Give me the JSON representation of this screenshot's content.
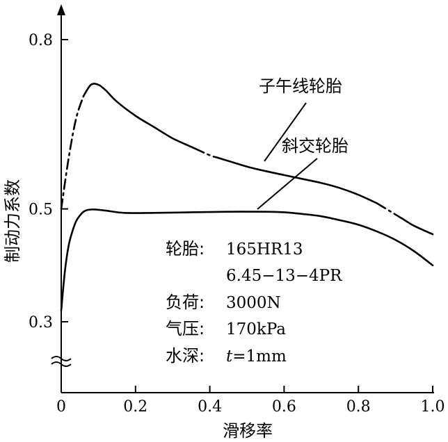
{
  "chart_data": {
    "type": "line",
    "title": "",
    "xlabel": "滑移率",
    "ylabel": "制动力系数",
    "xlim": [
      0,
      1.0
    ],
    "ylim": [
      0.3,
      0.8
    ],
    "x_ticks": [
      "0",
      "0.2",
      "0.4",
      "0.6",
      "0.8",
      "1.0"
    ],
    "y_ticks": [
      "0.3",
      "0.5",
      "0.8"
    ],
    "axis_break": true,
    "series": [
      {
        "name": "子午线轮胎",
        "x": [
          0.0,
          0.02,
          0.04,
          0.06,
          0.08,
          0.1,
          0.12,
          0.15,
          0.2,
          0.25,
          0.3,
          0.35,
          0.4,
          0.45,
          0.5,
          0.55,
          0.6,
          0.65,
          0.7,
          0.75,
          0.8,
          0.85,
          0.9,
          0.95,
          1.0
        ],
        "y": [
          0.5,
          0.59,
          0.66,
          0.7,
          0.72,
          0.72,
          0.71,
          0.69,
          0.665,
          0.645,
          0.625,
          0.61,
          0.595,
          0.585,
          0.575,
          0.567,
          0.56,
          0.553,
          0.546,
          0.537,
          0.525,
          0.51,
          0.49,
          0.47,
          0.455
        ],
        "dashed_ranges": [
          [
            0.0,
            0.06
          ],
          [
            0.36,
            0.42
          ],
          [
            0.85,
            0.92
          ]
        ]
      },
      {
        "name": "斜交轮胎",
        "x": [
          0.0,
          0.01,
          0.02,
          0.03,
          0.04,
          0.05,
          0.06,
          0.07,
          0.09,
          0.12,
          0.17,
          0.25,
          0.35,
          0.45,
          0.55,
          0.6,
          0.65,
          0.7,
          0.75,
          0.8,
          0.85,
          0.9,
          0.95,
          1.0
        ],
        "y": [
          0.32,
          0.39,
          0.435,
          0.46,
          0.478,
          0.488,
          0.495,
          0.498,
          0.499,
          0.497,
          0.493,
          0.493,
          0.494,
          0.495,
          0.495,
          0.494,
          0.491,
          0.487,
          0.48,
          0.472,
          0.46,
          0.445,
          0.425,
          0.4
        ]
      }
    ],
    "annotations": [
      {
        "label": "轮胎:",
        "value": "165HR13"
      },
      {
        "label": "",
        "value": "6.45−13−4PR"
      },
      {
        "label": "负荷:",
        "value": "3000N"
      },
      {
        "label": "气压:",
        "value": "170kPa"
      },
      {
        "label": "水深:",
        "value_italic": "t",
        "value": "=1mm"
      }
    ]
  }
}
